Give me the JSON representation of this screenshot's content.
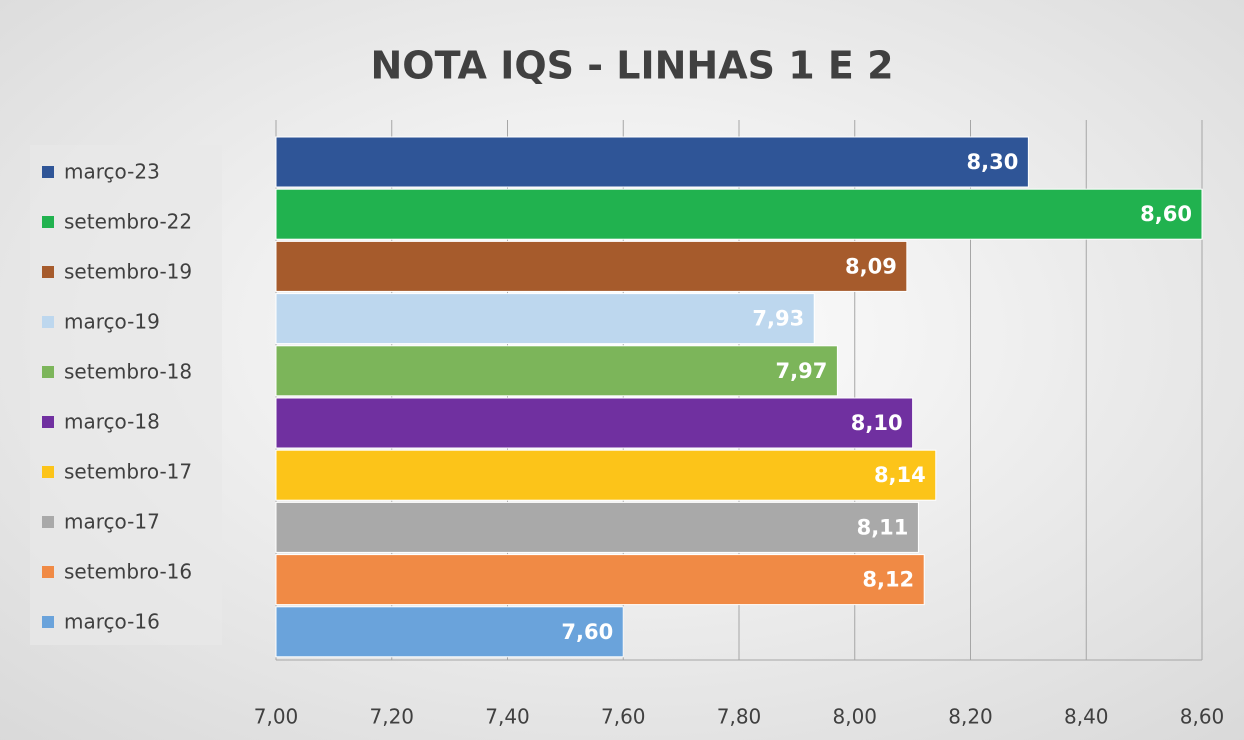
{
  "chart_data": {
    "type": "bar",
    "orientation": "horizontal",
    "title": "NOTA IQS - LINHAS 1 E 2",
    "series": [
      {
        "name": "março-23",
        "color": "#2f5597",
        "values": [
          8.3
        ],
        "value_labels": [
          "8,30"
        ]
      },
      {
        "name": "setembro-22",
        "color": "#21b24f",
        "values": [
          8.6
        ],
        "value_labels": [
          "8,60"
        ]
      },
      {
        "name": "setembro-19",
        "color": "#a65b2c",
        "values": [
          8.09
        ],
        "value_labels": [
          "8,09"
        ]
      },
      {
        "name": "março-19",
        "color": "#bdd7ee",
        "values": [
          7.93
        ],
        "value_labels": [
          "7,93"
        ]
      },
      {
        "name": "setembro-18",
        "color": "#7cb55a",
        "values": [
          7.97
        ],
        "value_labels": [
          "7,97"
        ]
      },
      {
        "name": "março-18",
        "color": "#7030a0",
        "values": [
          8.1
        ],
        "value_labels": [
          "8,10"
        ]
      },
      {
        "name": "setembro-17",
        "color": "#fcc419",
        "values": [
          8.14
        ],
        "value_labels": [
          "8,14"
        ]
      },
      {
        "name": "março-17",
        "color": "#a9a9a9",
        "values": [
          8.11
        ],
        "value_labels": [
          "8,11"
        ]
      },
      {
        "name": "setembro-16",
        "color": "#f08a45",
        "values": [
          8.12
        ],
        "value_labels": [
          "8,12"
        ]
      },
      {
        "name": "março-16",
        "color": "#6aa3db",
        "values": [
          7.6
        ],
        "value_labels": [
          "7,60"
        ]
      }
    ],
    "xlim": [
      7.0,
      8.6
    ],
    "xticks": [
      {
        "value": 7.0,
        "label": "7,00"
      },
      {
        "value": 7.2,
        "label": "7,20"
      },
      {
        "value": 7.4,
        "label": "7,40"
      },
      {
        "value": 7.6,
        "label": "7,60"
      },
      {
        "value": 7.8,
        "label": "7,80"
      },
      {
        "value": 8.0,
        "label": "8,00"
      },
      {
        "value": 8.2,
        "label": "8,20"
      },
      {
        "value": 8.4,
        "label": "8,40"
      },
      {
        "value": 8.6,
        "label": "8,60"
      }
    ],
    "grid": true,
    "legend": "left"
  }
}
